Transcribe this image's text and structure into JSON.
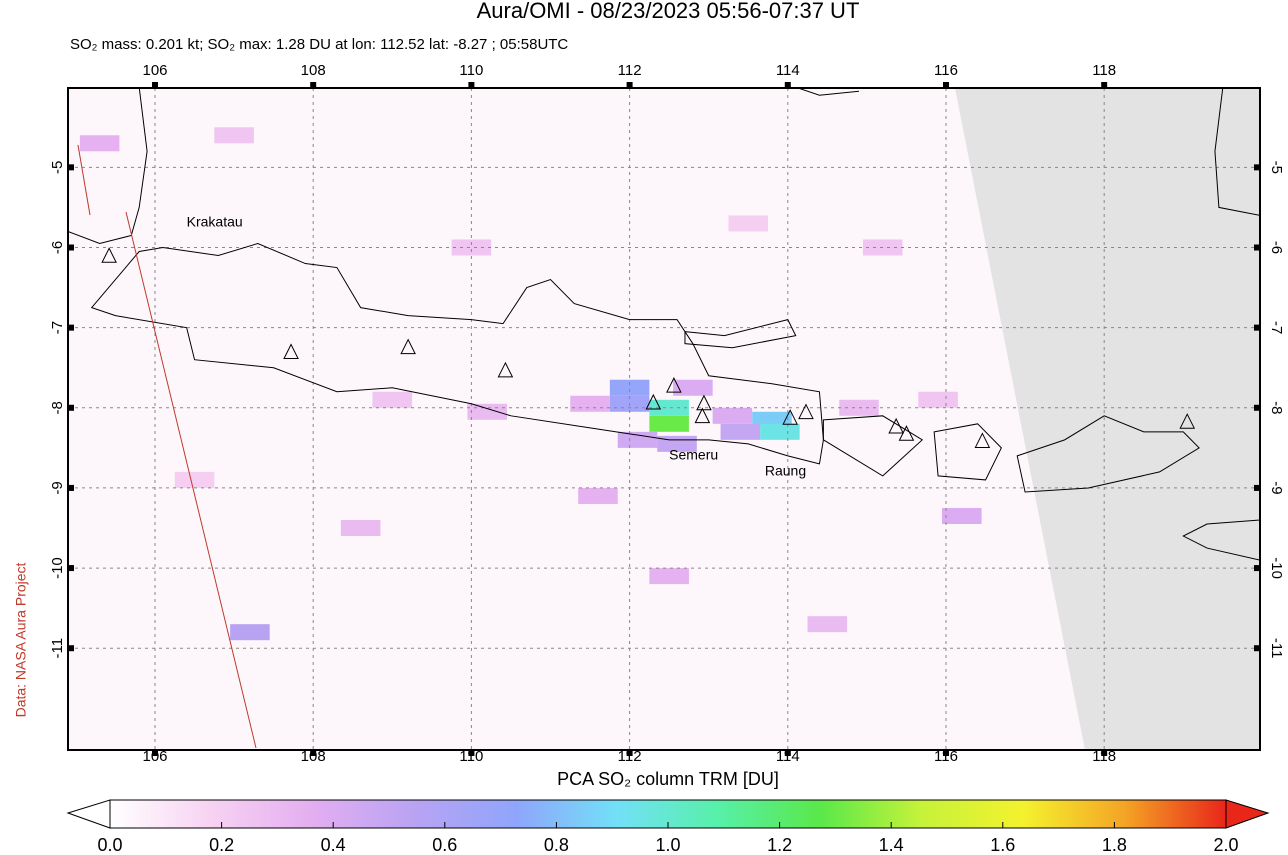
{
  "header": {
    "title": "Aura/OMI - 08/23/2023 05:56-07:37 UT",
    "subtitle": "SO₂ mass: 0.201 kt; SO₂ max: 1.28 DU at lon: 112.52 lat: -8.27 ; 05:58UTC"
  },
  "map": {
    "type": "map",
    "xlim": [
      104.9,
      119.97
    ],
    "ylim": [
      -12.27,
      -4.01
    ],
    "xticks": [
      106,
      108,
      110,
      112,
      114,
      116,
      118
    ],
    "yticks": [
      -5,
      -6,
      -7,
      -8,
      -9,
      -10,
      -11
    ],
    "grid": true,
    "volcano_labels": [
      {
        "text": "Krakatau",
        "lon": 106.4,
        "lat": -5.69
      },
      {
        "text": "Semeru",
        "lon": 112.5,
        "lat": -8.6
      },
      {
        "text": "Raung",
        "lon": 113.71,
        "lat": -8.8
      }
    ],
    "volcanoes": [
      {
        "lon": 105.42,
        "lat": -6.11
      },
      {
        "lon": 107.72,
        "lat": -7.31
      },
      {
        "lon": 109.2,
        "lat": -7.25
      },
      {
        "lon": 110.43,
        "lat": -7.54
      },
      {
        "lon": 112.3,
        "lat": -7.94
      },
      {
        "lon": 112.56,
        "lat": -7.73
      },
      {
        "lon": 112.94,
        "lat": -7.95
      },
      {
        "lon": 112.92,
        "lat": -8.11
      },
      {
        "lon": 114.03,
        "lat": -8.13
      },
      {
        "lon": 114.23,
        "lat": -8.06
      },
      {
        "lon": 115.37,
        "lat": -8.24
      },
      {
        "lon": 115.5,
        "lat": -8.33
      },
      {
        "lon": 116.46,
        "lat": -8.42
      },
      {
        "lon": 119.05,
        "lat": -8.18
      }
    ],
    "pixels": [
      {
        "lon": 112.0,
        "lat": -7.75,
        "value": 0.7
      },
      {
        "lon": 112.0,
        "lat": -7.95,
        "value": 0.65
      },
      {
        "lon": 112.5,
        "lat": -8.2,
        "value": 1.3
      },
      {
        "lon": 112.5,
        "lat": -8.0,
        "value": 1.0
      },
      {
        "lon": 112.1,
        "lat": -8.4,
        "value": 0.45
      },
      {
        "lon": 112.6,
        "lat": -8.45,
        "value": 0.5
      },
      {
        "lon": 113.8,
        "lat": -8.15,
        "value": 0.85
      },
      {
        "lon": 113.9,
        "lat": -8.3,
        "value": 0.95
      },
      {
        "lon": 113.4,
        "lat": -8.3,
        "value": 0.5
      },
      {
        "lon": 113.3,
        "lat": -8.1,
        "value": 0.4
      },
      {
        "lon": 111.5,
        "lat": -7.95,
        "value": 0.35
      },
      {
        "lon": 112.8,
        "lat": -7.75,
        "value": 0.4
      },
      {
        "lon": 109.0,
        "lat": -7.9,
        "value": 0.25
      },
      {
        "lon": 110.2,
        "lat": -8.05,
        "value": 0.3
      },
      {
        "lon": 114.9,
        "lat": -8.0,
        "value": 0.3
      },
      {
        "lon": 115.9,
        "lat": -7.9,
        "value": 0.25
      },
      {
        "lon": 116.2,
        "lat": -9.35,
        "value": 0.4
      },
      {
        "lon": 114.5,
        "lat": -10.7,
        "value": 0.3
      },
      {
        "lon": 107.2,
        "lat": -10.8,
        "value": 0.55
      },
      {
        "lon": 108.6,
        "lat": -9.5,
        "value": 0.3
      },
      {
        "lon": 107.0,
        "lat": -4.6,
        "value": 0.25
      },
      {
        "lon": 105.3,
        "lat": -4.7,
        "value": 0.35
      },
      {
        "lon": 110.0,
        "lat": -6.0,
        "value": 0.25
      },
      {
        "lon": 112.5,
        "lat": -10.1,
        "value": 0.35
      },
      {
        "lon": 111.6,
        "lat": -9.1,
        "value": 0.35
      },
      {
        "lon": 106.5,
        "lat": -8.9,
        "value": 0.2
      },
      {
        "lon": 113.5,
        "lat": -5.7,
        "value": 0.2
      },
      {
        "lon": 115.2,
        "lat": -6.0,
        "value": 0.25
      }
    ]
  },
  "colorbar": {
    "label": "PCA SO₂ column TRM [DU]",
    "lim": [
      0,
      2
    ],
    "ticks": [
      {
        "value": 0,
        "label": "0.0"
      },
      0.2,
      0.4,
      0.6,
      0.8,
      {
        "value": 1,
        "label": "1.0"
      },
      1.2,
      1.4,
      1.6,
      1.8,
      {
        "value": 2,
        "label": "2.0"
      }
    ],
    "colors": [
      "#ffffff",
      "#f7d2f2",
      "#e3aef0",
      "#b9a3f3",
      "#8fa5fb",
      "#72e0f7",
      "#57f0a8",
      "#5ae84a",
      "#c6f23a",
      "#f4f22e",
      "#f4a426",
      "#e8261a"
    ]
  },
  "credit": "Data: NASA Aura Project"
}
